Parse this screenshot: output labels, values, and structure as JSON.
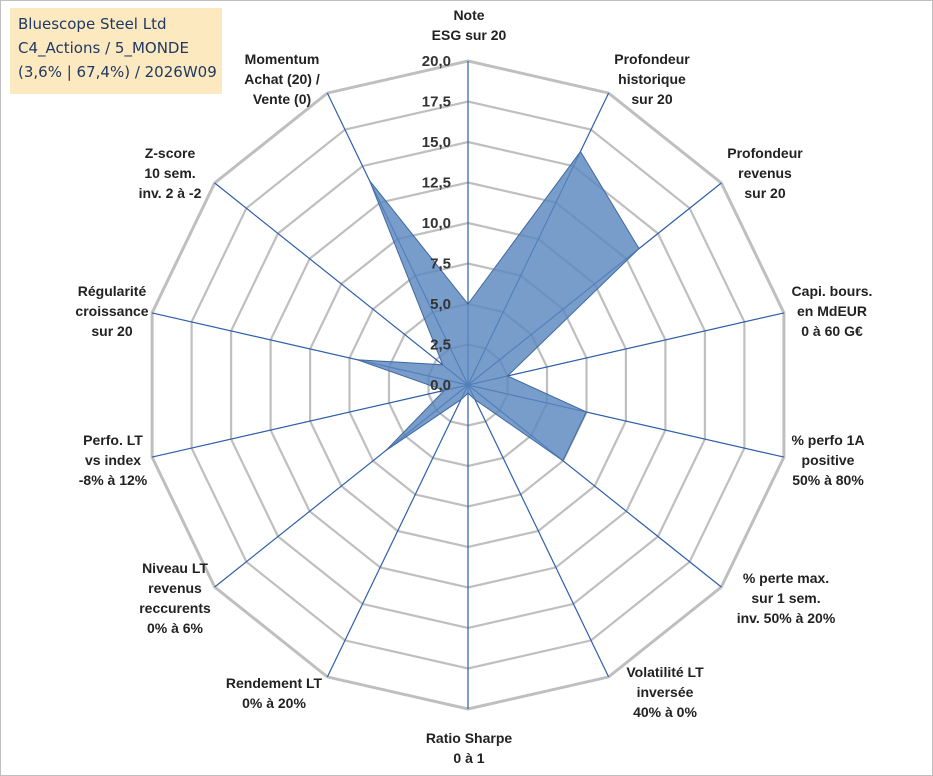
{
  "info_box": {
    "line1": "Bluescope Steel Ltd",
    "line2": "C4_Actions / 5_MONDE",
    "line3": "(3,6% | 67,4%) / 2026W09"
  },
  "colors": {
    "grid": "#bfbfbf",
    "spoke": "#2e5fa8",
    "fill": "#5a87bf",
    "fill_stroke": "#41699f"
  },
  "chart_data": {
    "type": "radar",
    "title": "",
    "rmin": 0,
    "rmax": 20,
    "tick_step": 2.5,
    "tick_labels": [
      "0,0",
      "2,5",
      "5,0",
      "7,5",
      "10,0",
      "12,5",
      "15,0",
      "17,5",
      "20,0"
    ],
    "axes": [
      {
        "label": [
          "Note",
          "ESG sur 20"
        ]
      },
      {
        "label": [
          "Profondeur",
          "historique",
          "sur 20"
        ]
      },
      {
        "label": [
          "Profondeur",
          "revenus",
          "sur 20"
        ]
      },
      {
        "label": [
          "Capi. bours.",
          "en MdEUR",
          "0 à 60 G€"
        ]
      },
      {
        "label": [
          "% perfo 1A",
          "positive",
          "50% à 80%"
        ]
      },
      {
        "label": [
          "% perte max.",
          "sur 1 sem.",
          "inv. 50% à 20%"
        ]
      },
      {
        "label": [
          "Volatilité LT",
          "inversée",
          "40% à 0%"
        ]
      },
      {
        "label": [
          "Ratio Sharpe",
          "0 à 1"
        ]
      },
      {
        "label": [
          "Rendement LT",
          "0% à 20%"
        ]
      },
      {
        "label": [
          "Niveau LT",
          "revenus",
          "reccurents",
          "0% à 6%"
        ]
      },
      {
        "label": [
          "Perfo. LT",
          "vs index",
          "-8% à 12%"
        ]
      },
      {
        "label": [
          "Régularité",
          "croissance",
          "sur 20"
        ]
      },
      {
        "label": [
          "Z-score",
          "10 sem.",
          "inv. 2 à -2"
        ]
      },
      {
        "label": [
          "Momentum",
          "Achat (20) /",
          "Vente (0)"
        ]
      }
    ],
    "series": [
      {
        "name": "Bluescope Steel Ltd",
        "values": [
          5.0,
          16.0,
          13.5,
          2.5,
          7.5,
          7.5,
          1.0,
          0.5,
          1.0,
          6.5,
          1.5,
          7.0,
          2.0,
          14.0
        ]
      }
    ]
  }
}
